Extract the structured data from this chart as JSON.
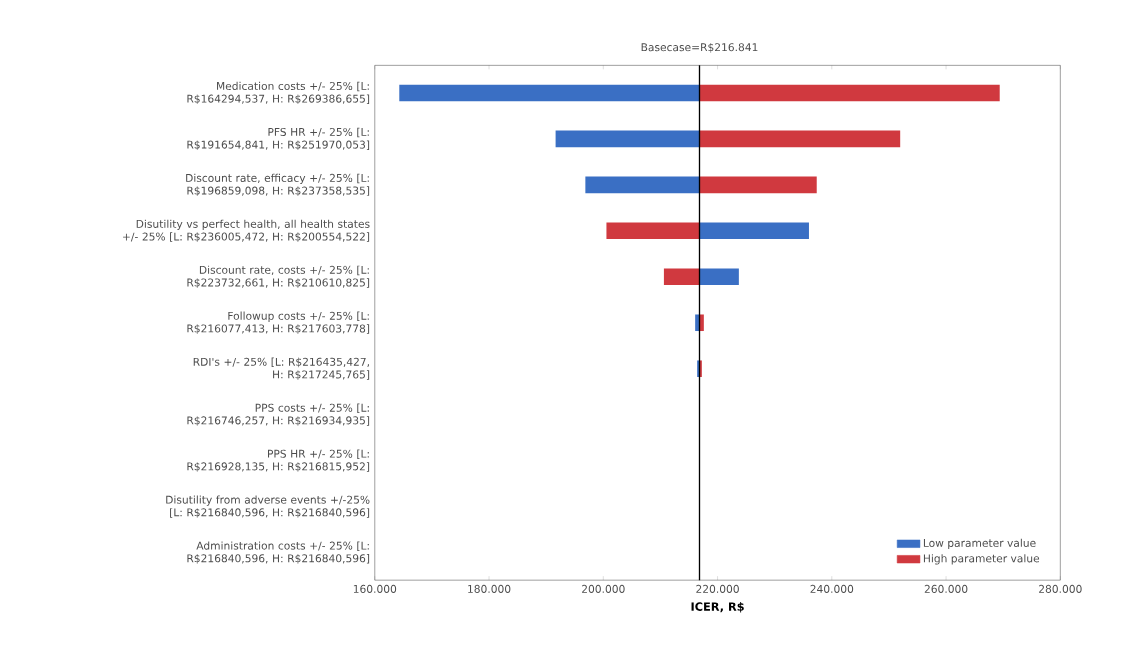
{
  "chart_data": {
    "type": "bar",
    "orientation": "horizontal",
    "xlabel": "ICER, R$",
    "categories": [
      "Medication costs +/- 25% [L: R$164294,537, H: R$269386,655]",
      "PFS HR +/- 25% [L: R$191654,841, H: R$251970,053]",
      "Discount rate, efficacy +/- 25% [L: R$196859,098, H: R$237358,535]",
      "Disutility vs perfect health, all health states +/- 25% [L: R$236005,472, H: R$200554,522]",
      "Discount rate, costs +/- 25% [L: R$223732,661, H: R$210610,825]",
      "Followup costs +/- 25% [L: R$216077,413, H: R$217603,778]",
      "RDI's +/- 25% [L: R$216435,427, H: R$217245,765]",
      "PPS costs +/- 25%  [L: R$216746,257, H: R$216934,935]",
      "PPS HR +/- 25% [L: R$216928,135, H: R$216815,952]",
      "Disutility from adverse events +/-25% [L: R$216840,596, H: R$216840,596]",
      "Administration costs +/- 25% [L: R$216840,596, H: R$216840,596]"
    ],
    "series": [
      {
        "name": "Low parameter value",
        "color": "#3a6fc4",
        "base": [
          216.841,
          216.841,
          216.841,
          216.841,
          216.841,
          216.841,
          216.841,
          null,
          null,
          null,
          null
        ],
        "values": [
          -52.55,
          -25.19,
          -19.98,
          19.16,
          6.89,
          -0.76,
          -0.41,
          null,
          null,
          null,
          null
        ]
      },
      {
        "name": "High parameter value",
        "color": "#d0393f",
        "base": [
          216.841,
          216.841,
          216.841,
          216.841,
          216.841,
          216.841,
          216.841,
          null,
          null,
          null,
          null
        ],
        "values": [
          52.55,
          35.13,
          20.52,
          -16.29,
          -6.23,
          0.76,
          0.41,
          null,
          null,
          null,
          null
        ]
      }
    ],
    "xlim": [
      160,
      280
    ],
    "xticks": [
      {
        "value": 160,
        "label": "160.000"
      },
      {
        "value": 180,
        "label": "180.000"
      },
      {
        "value": 200,
        "label": "200.000"
      },
      {
        "value": 220,
        "label": "220.000"
      },
      {
        "value": 240,
        "label": "240.000"
      },
      {
        "value": 260,
        "label": "260.000"
      },
      {
        "value": 280,
        "label": "280.000"
      }
    ],
    "ref_lines": [
      {
        "axis": "x",
        "value": 216.841,
        "label": "Basecase=R$216.841",
        "color": "#000000"
      }
    ],
    "legend": "bottom right"
  }
}
